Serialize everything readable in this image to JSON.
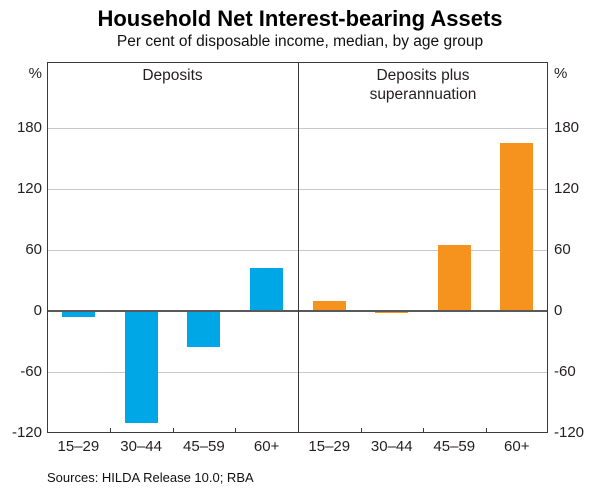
{
  "header": {
    "title": "Household Net Interest-bearing Assets",
    "subtitle": "Per cent of disposable income, median, by age group"
  },
  "footer": {
    "sources": "Sources: HILDA Release 10.0; RBA"
  },
  "chart_data": {
    "type": "bar",
    "title": "Household Net Interest-bearing Assets",
    "subtitle": "Per cent of disposable income, median, by age group",
    "categories": [
      "15–29",
      "30–44",
      "45–59",
      "60+"
    ],
    "yticks": [
      180,
      120,
      60,
      0,
      -60,
      -120
    ],
    "ylim": [
      -120,
      245
    ],
    "ylabel_unit": "%",
    "grid": true,
    "legend_position": "none",
    "panels": [
      {
        "name": "deposits",
        "title_lines": [
          "Deposits"
        ],
        "color": "#00a7e7",
        "values": [
          -6,
          -110,
          -35,
          42
        ]
      },
      {
        "name": "deposits-plus-superannuation",
        "title_lines": [
          "Deposits plus",
          "superannuation"
        ],
        "color": "#f6921e",
        "values": [
          10,
          -2,
          65,
          165
        ]
      }
    ],
    "colors": {
      "gridline": "#c9c9c9",
      "zero_line": "#58595b",
      "frame": "#3a3a3a"
    }
  }
}
